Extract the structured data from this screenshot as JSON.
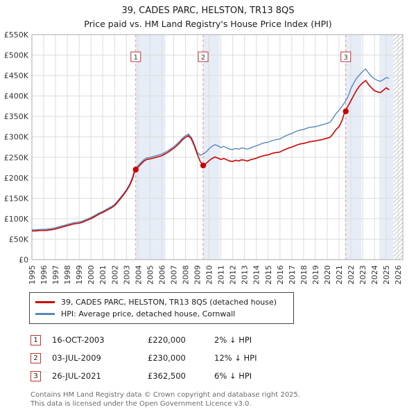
{
  "title": "39, CADES PARC, HELSTON, TR13 8QS",
  "subtitle": "Price paid vs. HM Land Registry's House Price Index (HPI)",
  "chart_data": {
    "type": "line",
    "x_range": [
      1995,
      2026.4
    ],
    "x_start": 1995,
    "x_step": 0.25,
    "x_ticks": [
      1995,
      1996,
      1997,
      1998,
      1999,
      2000,
      2001,
      2002,
      2003,
      2004,
      2005,
      2006,
      2007,
      2008,
      2009,
      2010,
      2011,
      2012,
      2013,
      2014,
      2015,
      2016,
      2017,
      2018,
      2019,
      2020,
      2021,
      2022,
      2023,
      2024,
      2025,
      2026
    ],
    "ylim": [
      0,
      550000
    ],
    "y_ticks": [
      0,
      50000,
      100000,
      150000,
      200000,
      250000,
      300000,
      350000,
      400000,
      450000,
      500000,
      550000
    ],
    "y_tick_labels": [
      "£0",
      "£50K",
      "£100K",
      "£150K",
      "£200K",
      "£250K",
      "£300K",
      "£350K",
      "£400K",
      "£450K",
      "£500K",
      "£550K"
    ],
    "grid": true,
    "band_color": "#e7edf7",
    "sale_line_color": "#e09494",
    "bands": [
      {
        "from": 2003.79,
        "to": 2006.3
      },
      {
        "from": 2009.5,
        "to": 2010.9
      },
      {
        "from": 2021.56,
        "to": 2022.9
      },
      {
        "from": 2024.4,
        "to": 2025.6
      }
    ],
    "hatch": {
      "from": 2025.6,
      "to": 2026.4
    },
    "series": [
      {
        "name": "39, CADES PARC, HELSTON, TR13 8QS (detached house)",
        "color": "#cc0000",
        "values": [
          70000,
          70000,
          70500,
          71000,
          71000,
          71500,
          72500,
          73500,
          75000,
          77000,
          79000,
          81000,
          83000,
          85000,
          87000,
          88000,
          89000,
          91000,
          94000,
          97000,
          100000,
          104000,
          108000,
          112000,
          115000,
          119000,
          123000,
          127000,
          132000,
          140000,
          149000,
          158000,
          168000,
          180000,
          196000,
          220000,
          226000,
          234000,
          241000,
          245000,
          246000,
          248000,
          250000,
          252000,
          254000,
          258000,
          262000,
          267000,
          272000,
          278000,
          285000,
          293000,
          299000,
          303000,
          295000,
          278000,
          258000,
          240000,
          230000,
          235000,
          242000,
          247000,
          251000,
          248000,
          245000,
          247000,
          244000,
          241000,
          240000,
          243000,
          241000,
          244000,
          243000,
          241000,
          244000,
          246000,
          248000,
          251000,
          253000,
          255000,
          256000,
          259000,
          261000,
          262000,
          263000,
          267000,
          270000,
          273000,
          275000,
          278000,
          281000,
          283000,
          284000,
          286000,
          288000,
          289000,
          290000,
          292000,
          293000,
          295000,
          297000,
          299000,
          308000,
          318000,
          325000,
          340000,
          362500,
          375000,
          388000,
          402000,
          415000,
          425000,
          432000,
          438000,
          428000,
          420000,
          413000,
          410000,
          408000,
          414000,
          420000,
          415000
        ]
      },
      {
        "name": "HPI: Average price, detached house, Cornwall",
        "color": "#5588bb",
        "values": [
          73000,
          73000,
          73500,
          74000,
          74000,
          74500,
          75500,
          76500,
          78000,
          80000,
          82000,
          84000,
          86000,
          88000,
          90000,
          91000,
          92000,
          94000,
          97000,
          100000,
          103000,
          107000,
          111000,
          115000,
          118000,
          122000,
          126000,
          130000,
          135000,
          143000,
          152000,
          161000,
          171000,
          183000,
          200000,
          224000,
          230000,
          238000,
          245000,
          249000,
          250000,
          252000,
          254000,
          256000,
          258000,
          262000,
          266000,
          271000,
          276000,
          282000,
          289000,
          297000,
          303000,
          307000,
          299000,
          282000,
          262000,
          255000,
          258000,
          263000,
          271000,
          277000,
          281000,
          278000,
          274000,
          277000,
          273000,
          270000,
          269000,
          272000,
          270000,
          273000,
          272000,
          270000,
          273000,
          276000,
          278000,
          281000,
          284000,
          286000,
          287000,
          290000,
          292000,
          294000,
          295000,
          299000,
          303000,
          306000,
          308000,
          312000,
          315000,
          317000,
          318000,
          321000,
          323000,
          324000,
          325000,
          327000,
          329000,
          331000,
          333000,
          336000,
          346000,
          357000,
          365000,
          375000,
          385000,
          398000,
          418000,
          432000,
          444000,
          452000,
          460000,
          466000,
          456000,
          448000,
          442000,
          438000,
          436000,
          440000,
          445000,
          443000
        ]
      }
    ],
    "sales": [
      {
        "label": "1",
        "x": 2003.79,
        "price": 220000
      },
      {
        "label": "2",
        "x": 2009.5,
        "price": 230000
      },
      {
        "label": "3",
        "x": 2021.57,
        "price": 362500
      }
    ]
  },
  "transactions": [
    {
      "num": "1",
      "date": "16-OCT-2003",
      "price": "£220,000",
      "vs_hpi": "2% ↓ HPI"
    },
    {
      "num": "2",
      "date": "03-JUL-2009",
      "price": "£230,000",
      "vs_hpi": "12% ↓ HPI"
    },
    {
      "num": "3",
      "date": "26-JUL-2021",
      "price": "£362,500",
      "vs_hpi": "6% ↓ HPI"
    }
  ],
  "footer_lines": [
    "Contains HM Land Registry data © Crown copyright and database right 2025.",
    "This data is licensed under the Open Government Licence v3.0."
  ]
}
